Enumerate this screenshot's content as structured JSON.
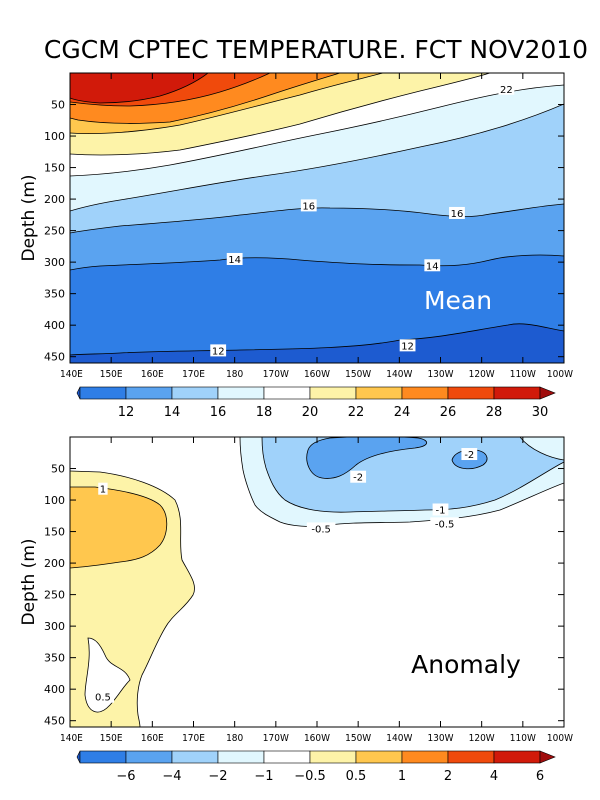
{
  "title": "CGCM CPTEC TEMPERATURE. FCT NOV2010",
  "chart_data": [
    {
      "type": "heatmap",
      "panel": "Mean",
      "ylabel": "Depth (m)",
      "yticks": [
        50,
        100,
        150,
        200,
        250,
        300,
        350,
        400,
        450
      ],
      "ylim": [
        460,
        0
      ],
      "xticks": [
        "140E",
        "150E",
        "160E",
        "170E",
        "180",
        "170W",
        "160W",
        "150W",
        "140W",
        "130W",
        "120W",
        "110W",
        "100W"
      ],
      "xlim_deg_east": [
        140,
        260
      ],
      "colorbar": {
        "labels": [
          "12",
          "14",
          "16",
          "18",
          "20",
          "22",
          "24",
          "26",
          "28",
          "30"
        ],
        "colors": [
          "#1d5bd0",
          "#2f7ee6",
          "#5aa3f0",
          "#a0d2fa",
          "#e1f7fe",
          "#ffffff",
          "#fdf3a8",
          "#ffc74e",
          "#ff8a1f",
          "#f04a0c",
          "#d11a0a",
          "#a00d0d"
        ]
      },
      "contour_labels": [
        {
          "text": "22",
          "lon": 246,
          "depth": 25
        },
        {
          "text": "16",
          "lon": 198,
          "depth": 210
        },
        {
          "text": "16",
          "lon": 234,
          "depth": 222
        },
        {
          "text": "14",
          "lon": 180,
          "depth": 295
        },
        {
          "text": "14",
          "lon": 228,
          "depth": 305
        },
        {
          "text": "12",
          "lon": 176,
          "depth": 440
        },
        {
          "text": "12",
          "lon": 222,
          "depth": 432
        }
      ]
    },
    {
      "type": "heatmap",
      "panel": "Anomaly",
      "ylabel": "Depth (m)",
      "yticks": [
        50,
        100,
        150,
        200,
        250,
        300,
        350,
        400,
        450
      ],
      "ylim": [
        460,
        0
      ],
      "xticks": [
        "140E",
        "150E",
        "160E",
        "170E",
        "180",
        "170W",
        "160W",
        "150W",
        "140W",
        "130W",
        "120W",
        "110W",
        "100W"
      ],
      "xlim_deg_east": [
        140,
        260
      ],
      "colorbar": {
        "labels": [
          "-6",
          "-4",
          "-2",
          "-1",
          "-0.5",
          "0.5",
          "1",
          "2",
          "4",
          "6"
        ],
        "colors": [
          "#1d5bd0",
          "#2f7ee6",
          "#5aa3f0",
          "#a0d2fa",
          "#e1f7fe",
          "#ffffff",
          "#fdf3a8",
          "#ffc74e",
          "#ff8a1f",
          "#f04a0c",
          "#d11a0a",
          "#a00d0d"
        ]
      },
      "contour_labels": [
        {
          "text": "1",
          "lon": 148,
          "depth": 82
        },
        {
          "text": "-2",
          "lon": 210,
          "depth": 63
        },
        {
          "text": "-2",
          "lon": 237,
          "depth": 27
        },
        {
          "text": "-1",
          "lon": 230,
          "depth": 115
        },
        {
          "text": "-0.5",
          "lon": 231,
          "depth": 137
        },
        {
          "text": "-0.5",
          "lon": 201,
          "depth": 145
        },
        {
          "text": "0.5",
          "lon": 148,
          "depth": 412
        }
      ]
    }
  ]
}
